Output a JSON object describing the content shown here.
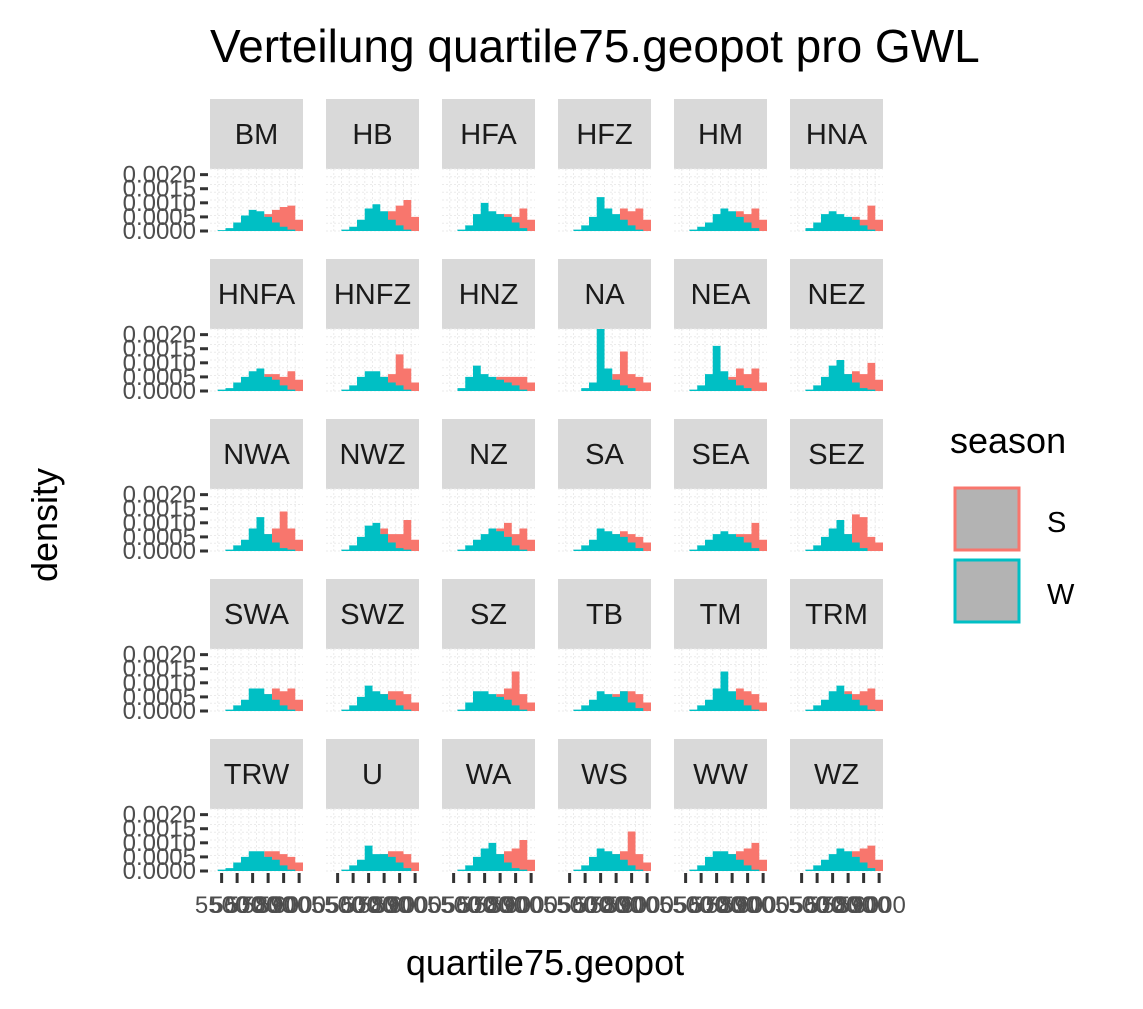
{
  "chart_data": {
    "type": "histogram",
    "title": "Verteilung quartile75.geopot pro GWL",
    "xlabel": "quartile75.geopot",
    "ylabel": "density",
    "ylim": [
      0,
      0.0022
    ],
    "y_ticks": [
      "0.0000",
      "0.0005",
      "0.0010",
      "0.0015",
      "0.0020"
    ],
    "x_ticks": [
      "5500",
      "5600",
      "5700",
      "5800",
      "5900",
      "6000"
    ],
    "grid": true,
    "legend": {
      "title": "season",
      "placement": "right",
      "entries": [
        {
          "label": "S",
          "color": "#F8766D"
        },
        {
          "label": "W",
          "color": "#00BFC4"
        }
      ]
    },
    "x_values": [
      5450,
      5500,
      5550,
      5600,
      5650,
      5700,
      5750,
      5800,
      5850,
      5900,
      5950,
      6000
    ],
    "facets": [
      {
        "name": "BM",
        "S": [
          0,
          0,
          0,
          3e-05,
          0.0001,
          0.00025,
          0.0004,
          0.0006,
          0.00075,
          0.00085,
          0.0009,
          0.0004
        ],
        "W": [
          0,
          3e-05,
          0.0001,
          0.0003,
          0.00055,
          0.00075,
          0.0007,
          0.0005,
          0.0003,
          0.00015,
          5e-05,
          0
        ]
      },
      {
        "name": "HB",
        "S": [
          0,
          0,
          0,
          0,
          5e-05,
          0.0002,
          0.0004,
          0.0006,
          0.0007,
          0.0009,
          0.0011,
          0.0005
        ],
        "W": [
          0,
          0,
          5e-05,
          0.00015,
          0.0004,
          0.0008,
          0.00095,
          0.0007,
          0.0004,
          0.0002,
          5e-05,
          0
        ]
      },
      {
        "name": "HFA",
        "S": [
          0,
          0,
          0,
          0,
          5e-05,
          0.0002,
          0.0004,
          0.0006,
          0.0006,
          0.0005,
          0.0008,
          0.0004
        ],
        "W": [
          0,
          0,
          5e-05,
          0.0002,
          0.0006,
          0.001,
          0.0007,
          0.0006,
          0.0005,
          0.0003,
          0.0001,
          0
        ]
      },
      {
        "name": "HFZ",
        "S": [
          0,
          0,
          0,
          0,
          5e-05,
          0.0002,
          0.0004,
          0.0005,
          0.0008,
          0.0007,
          0.0008,
          0.0004
        ],
        "W": [
          0,
          0,
          5e-05,
          0.0002,
          0.0005,
          0.0012,
          0.0008,
          0.0006,
          0.0004,
          0.0002,
          5e-05,
          0
        ]
      },
      {
        "name": "HM",
        "S": [
          0,
          0,
          0,
          0,
          5e-05,
          0.0002,
          0.0004,
          0.0006,
          0.0007,
          0.0006,
          0.0008,
          0.0004
        ],
        "W": [
          0,
          0,
          5e-05,
          0.00015,
          0.0003,
          0.0006,
          0.0008,
          0.0007,
          0.0005,
          0.0003,
          0.0001,
          0
        ]
      },
      {
        "name": "HNA",
        "S": [
          0,
          0,
          0,
          0,
          5e-05,
          0.0002,
          0.0003,
          0.0004,
          0.0005,
          0.0004,
          0.0009,
          0.0004
        ],
        "W": [
          0,
          0,
          0.0001,
          0.0003,
          0.0006,
          0.0007,
          0.0006,
          0.0005,
          0.0004,
          0.0002,
          5e-05,
          0
        ]
      },
      {
        "name": "HNFA",
        "S": [
          0,
          0,
          0,
          0,
          5e-05,
          0.0002,
          0.0004,
          0.0006,
          0.0006,
          0.0005,
          0.0007,
          0.0004
        ],
        "W": [
          0,
          5e-05,
          0.0001,
          0.0003,
          0.0005,
          0.0007,
          0.0008,
          0.0005,
          0.0004,
          0.0002,
          5e-05,
          0
        ]
      },
      {
        "name": "HNFZ",
        "S": [
          0,
          0,
          0,
          0,
          5e-05,
          0.0002,
          0.0004,
          0.0005,
          0.0006,
          0.0013,
          0.0008,
          0.0003
        ],
        "W": [
          0,
          0,
          5e-05,
          0.0002,
          0.0005,
          0.0007,
          0.0007,
          0.0005,
          0.0003,
          0.0002,
          5e-05,
          0
        ]
      },
      {
        "name": "HNZ",
        "S": [
          0,
          0,
          0,
          0,
          5e-05,
          0.0002,
          0.0004,
          0.0005,
          0.0005,
          0.0005,
          0.0005,
          0.0003
        ],
        "W": [
          0,
          0,
          0.0001,
          0.0005,
          0.0009,
          0.0006,
          0.0005,
          0.0004,
          0.0003,
          0.0002,
          5e-05,
          0
        ]
      },
      {
        "name": "NA",
        "S": [
          0,
          0,
          0,
          0,
          5e-05,
          0.0002,
          0.0004,
          0.0006,
          0.0014,
          0.0006,
          0.0005,
          0.0003
        ],
        "W": [
          0,
          0,
          0,
          0.0001,
          0.0003,
          0.0022,
          0.0008,
          0.0004,
          0.0002,
          0.0001,
          0,
          0
        ]
      },
      {
        "name": "NEA",
        "S": [
          0,
          0,
          0,
          0,
          5e-05,
          0.0002,
          0.0003,
          0.0005,
          0.0008,
          0.0006,
          0.0008,
          0.0003
        ],
        "W": [
          0,
          0,
          5e-05,
          0.0002,
          0.0006,
          0.0016,
          0.0007,
          0.0004,
          0.0002,
          0.0001,
          0,
          0
        ]
      },
      {
        "name": "NEZ",
        "S": [
          0,
          0,
          0,
          0,
          5e-05,
          0.0002,
          0.0004,
          0.0006,
          0.0007,
          0.0006,
          0.001,
          0.0004
        ],
        "W": [
          0,
          0,
          5e-05,
          0.0002,
          0.0005,
          0.0009,
          0.0011,
          0.0006,
          0.0003,
          0.0001,
          5e-05,
          0
        ]
      },
      {
        "name": "NWA",
        "S": [
          0,
          0,
          0,
          0,
          5e-05,
          0.0002,
          0.0004,
          0.0006,
          0.0008,
          0.0014,
          0.0008,
          0.0004
        ],
        "W": [
          0,
          0,
          5e-05,
          0.0002,
          0.0004,
          0.0008,
          0.0012,
          0.0006,
          0.0003,
          0.0001,
          5e-05,
          0
        ]
      },
      {
        "name": "NWZ",
        "S": [
          0,
          0,
          0,
          0,
          5e-05,
          0.0002,
          0.0004,
          0.0008,
          0.0006,
          0.0006,
          0.0011,
          0.0004
        ],
        "W": [
          0,
          0,
          5e-05,
          0.0002,
          0.0005,
          0.0009,
          0.001,
          0.0006,
          0.0003,
          0.0001,
          5e-05,
          0
        ]
      },
      {
        "name": "NZ",
        "S": [
          0,
          0,
          0,
          0,
          5e-05,
          0.0002,
          0.0004,
          0.0008,
          0.001,
          0.0006,
          0.0008,
          0.0004
        ],
        "W": [
          0,
          0,
          5e-05,
          0.0002,
          0.0004,
          0.0006,
          0.0008,
          0.0007,
          0.0005,
          0.0002,
          5e-05,
          0
        ]
      },
      {
        "name": "SA",
        "S": [
          0,
          0,
          0,
          0,
          5e-05,
          0.0002,
          0.0004,
          0.0006,
          0.0007,
          0.0006,
          0.0005,
          0.0003
        ],
        "W": [
          0,
          0,
          5e-05,
          0.0002,
          0.0004,
          0.0008,
          0.0007,
          0.0006,
          0.0005,
          0.0003,
          0.0001,
          0
        ]
      },
      {
        "name": "SEA",
        "S": [
          0,
          0,
          0,
          0,
          5e-05,
          0.0002,
          0.0004,
          0.0005,
          0.0006,
          0.0006,
          0.001,
          0.0004
        ],
        "W": [
          0,
          0,
          5e-05,
          0.0002,
          0.0004,
          0.0006,
          0.0007,
          0.0006,
          0.0005,
          0.0003,
          0.0001,
          0
        ]
      },
      {
        "name": "SEZ",
        "S": [
          0,
          0,
          0,
          0,
          5e-05,
          0.0002,
          0.0004,
          0.0006,
          0.0013,
          0.0012,
          0.0005,
          0.0003
        ],
        "W": [
          0,
          0,
          5e-05,
          0.0002,
          0.0005,
          0.0008,
          0.0011,
          0.0006,
          0.0003,
          0.0001,
          0,
          0
        ]
      },
      {
        "name": "SWA",
        "S": [
          0,
          0,
          0,
          0,
          5e-05,
          0.0002,
          0.0004,
          0.0006,
          0.0008,
          0.0007,
          0.0008,
          0.0004
        ],
        "W": [
          0,
          0,
          5e-05,
          0.0002,
          0.0004,
          0.0008,
          0.0008,
          0.0006,
          0.0004,
          0.0002,
          5e-05,
          0
        ]
      },
      {
        "name": "SWZ",
        "S": [
          0,
          0,
          0,
          0,
          5e-05,
          0.0002,
          0.0004,
          0.0006,
          0.0007,
          0.0007,
          0.0006,
          0.0003
        ],
        "W": [
          0,
          0,
          5e-05,
          0.0002,
          0.0005,
          0.0009,
          0.0007,
          0.0006,
          0.0004,
          0.0002,
          5e-05,
          0
        ]
      },
      {
        "name": "SZ",
        "S": [
          0,
          0,
          0,
          0,
          5e-05,
          0.0002,
          0.0005,
          0.0006,
          0.0008,
          0.0014,
          0.0006,
          0.0003
        ],
        "W": [
          0,
          0,
          5e-05,
          0.0003,
          0.0007,
          0.0007,
          0.0006,
          0.0005,
          0.0004,
          0.0002,
          5e-05,
          0
        ]
      },
      {
        "name": "TB",
        "S": [
          0,
          0,
          0,
          0,
          5e-05,
          0.0002,
          0.0004,
          0.0006,
          0.0007,
          0.0007,
          0.0006,
          0.0003
        ],
        "W": [
          0,
          0,
          5e-05,
          0.0002,
          0.0004,
          0.0007,
          0.0006,
          0.0005,
          0.0007,
          0.0003,
          0.0001,
          0
        ]
      },
      {
        "name": "TM",
        "S": [
          0,
          0,
          0,
          0,
          5e-05,
          0.0002,
          0.0004,
          0.0006,
          0.0008,
          0.0007,
          0.0006,
          0.0003
        ],
        "W": [
          0,
          0,
          5e-05,
          0.0002,
          0.0004,
          0.0008,
          0.0014,
          0.0007,
          0.0004,
          0.0002,
          5e-05,
          0
        ]
      },
      {
        "name": "TRM",
        "S": [
          0,
          0,
          0,
          0,
          5e-05,
          0.0002,
          0.0004,
          0.0007,
          0.0006,
          0.0007,
          0.0008,
          0.0004
        ],
        "W": [
          0,
          0,
          5e-05,
          0.0002,
          0.0004,
          0.0007,
          0.0009,
          0.0006,
          0.0004,
          0.0002,
          5e-05,
          0
        ]
      },
      {
        "name": "TRW",
        "S": [
          0,
          0,
          0,
          0,
          5e-05,
          0.0002,
          0.0004,
          0.0007,
          0.0007,
          0.0006,
          0.0005,
          0.0003
        ],
        "W": [
          0,
          5e-05,
          0.0001,
          0.0003,
          0.0005,
          0.0007,
          0.0007,
          0.0005,
          0.0004,
          0.0002,
          5e-05,
          0
        ]
      },
      {
        "name": "U",
        "S": [
          0,
          0,
          0,
          0,
          5e-05,
          0.0002,
          0.0004,
          0.0006,
          0.0007,
          0.0007,
          0.0006,
          0.0003
        ],
        "W": [
          0,
          0,
          5e-05,
          0.0002,
          0.0004,
          0.0009,
          0.0006,
          0.0006,
          0.0005,
          0.0003,
          0.0001,
          0
        ]
      },
      {
        "name": "WA",
        "S": [
          0,
          0,
          0,
          0,
          5e-05,
          0.0002,
          0.0004,
          0.0006,
          0.0007,
          0.0008,
          0.0011,
          0.0004
        ],
        "W": [
          0,
          0,
          5e-05,
          0.0002,
          0.0005,
          0.0008,
          0.001,
          0.0006,
          0.0003,
          0.0001,
          5e-05,
          0
        ]
      },
      {
        "name": "WS",
        "S": [
          0,
          0,
          0,
          0,
          5e-05,
          0.0002,
          0.0004,
          0.0006,
          0.0007,
          0.0014,
          0.0006,
          0.0003
        ],
        "W": [
          0,
          0,
          5e-05,
          0.0002,
          0.0005,
          0.0008,
          0.0007,
          0.0006,
          0.0004,
          0.0002,
          5e-05,
          0
        ]
      },
      {
        "name": "WW",
        "S": [
          0,
          0,
          0,
          0,
          5e-05,
          0.0002,
          0.0004,
          0.0006,
          0.0007,
          0.0008,
          0.001,
          0.0004
        ],
        "W": [
          0,
          0,
          5e-05,
          0.0002,
          0.0005,
          0.0007,
          0.0007,
          0.0006,
          0.0004,
          0.0002,
          5e-05,
          0
        ]
      },
      {
        "name": "WZ",
        "S": [
          0,
          0,
          0,
          0,
          5e-05,
          0.0002,
          0.0004,
          0.0006,
          0.0007,
          0.0008,
          0.0009,
          0.0004
        ],
        "W": [
          0,
          0,
          5e-05,
          0.0002,
          0.0004,
          0.0006,
          0.0008,
          0.0007,
          0.0005,
          0.0003,
          0.0001,
          0
        ]
      }
    ]
  }
}
